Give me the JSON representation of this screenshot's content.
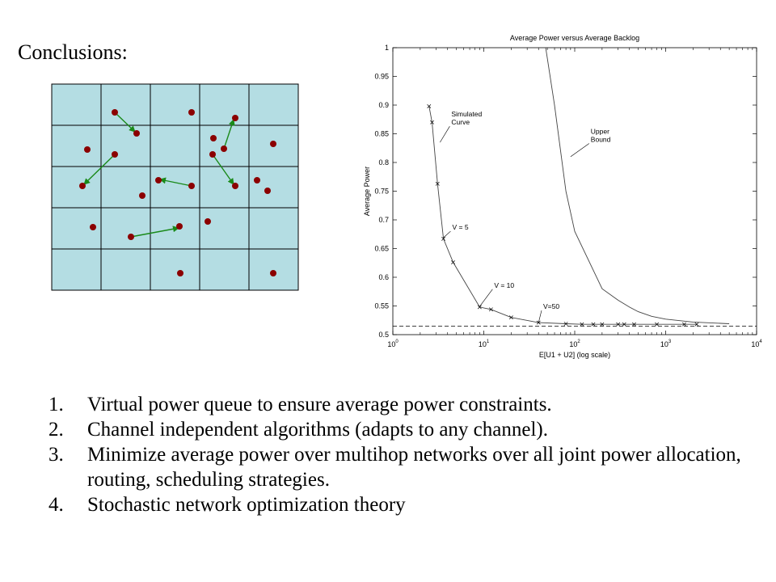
{
  "slide": {
    "title": "Conclusions:",
    "bullets": [
      {
        "num": "1.",
        "text": "Virtual power queue to ensure average power constraints."
      },
      {
        "num": "2.",
        "text": "Channel independent algorithms (adapts to any channel)."
      },
      {
        "num": "3.",
        "text": "Minimize average power over multihop networks over all joint power allocation, routing, scheduling strategies."
      },
      {
        "num": "4.",
        "text": "Stochastic network optimization theory"
      }
    ]
  },
  "network_diagram": {
    "cell_color": "#b4dde3",
    "node_color": "#8b0000",
    "arrow_color": "#1a8a1a",
    "rows": 5,
    "cols": 5
  },
  "chart_data": {
    "type": "line",
    "title": "Average Power versus Average Backlog",
    "xlabel": "E[U1 + U2] (log scale)",
    "ylabel": "Average Power",
    "xscale": "log",
    "xlim": [
      1,
      10000
    ],
    "ylim": [
      0.5,
      1.0
    ],
    "x_ticks": [
      1,
      10,
      100,
      1000,
      10000
    ],
    "x_tick_labels": [
      {
        "base": "10",
        "exp": "0"
      },
      {
        "base": "10",
        "exp": "1"
      },
      {
        "base": "10",
        "exp": "2"
      },
      {
        "base": "10",
        "exp": "3"
      },
      {
        "base": "10",
        "exp": "4"
      }
    ],
    "y_ticks": [
      0.5,
      0.55,
      0.6,
      0.65,
      0.7,
      0.75,
      0.8,
      0.85,
      0.9,
      0.95,
      1.0
    ],
    "y_tick_labels": [
      "0.5",
      "0.55",
      "0.6",
      "0.65",
      "0.7",
      "0.75",
      "0.8",
      "0.85",
      "0.9",
      "0.95",
      "1"
    ],
    "grid": false,
    "series": [
      {
        "name": "Simulated Curve",
        "marker": "x",
        "x": [
          2.5,
          2.7,
          3.1,
          3.6,
          4.6,
          9,
          12,
          20,
          40,
          80,
          120,
          160,
          200,
          300,
          350,
          450,
          800,
          1600,
          2200
        ],
        "y": [
          0.898,
          0.87,
          0.763,
          0.667,
          0.626,
          0.548,
          0.544,
          0.53,
          0.521,
          0.519,
          0.518,
          0.518,
          0.518,
          0.518,
          0.518,
          0.518,
          0.518,
          0.518,
          0.518
        ]
      },
      {
        "name": "Upper Bound",
        "marker": "none",
        "x": [
          48,
          60,
          80,
          100,
          200,
          300,
          400,
          500,
          700,
          1000,
          2000,
          5000
        ],
        "y": [
          1.0,
          0.9,
          0.75,
          0.68,
          0.58,
          0.56,
          0.548,
          0.54,
          0.532,
          0.527,
          0.522,
          0.519
        ]
      }
    ],
    "dashed_line_y": 0.515,
    "annotations": [
      {
        "lines": [
          "Simulated",
          "Curve"
        ],
        "text_x": 4.4,
        "text_y": 0.88,
        "arrow_to_x": 3.3,
        "arrow_to_y": 0.835
      },
      {
        "lines": [
          "Upper",
          "Bound"
        ],
        "text_x": 150,
        "text_y": 0.85,
        "arrow_to_x": 90,
        "arrow_to_y": 0.81
      },
      {
        "lines": [
          "V = 5"
        ],
        "text_x": 4.5,
        "text_y": 0.683,
        "arrow_to_x": 3.6,
        "arrow_to_y": 0.669
      },
      {
        "lines": [
          "V = 10"
        ],
        "text_x": 13,
        "text_y": 0.582,
        "arrow_to_x": 9,
        "arrow_to_y": 0.549
      },
      {
        "lines": [
          "V=50"
        ],
        "text_x": 45,
        "text_y": 0.545,
        "arrow_to_x": 40,
        "arrow_to_y": 0.521
      }
    ]
  }
}
